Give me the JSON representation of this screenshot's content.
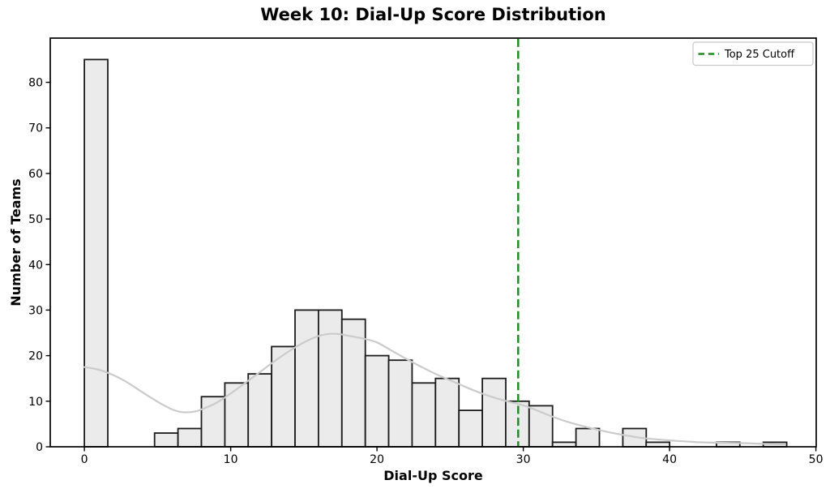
{
  "chart_data": {
    "type": "bar",
    "subtype": "histogram",
    "title": "Week 10: Dial-Up Score Distribution",
    "xlabel": "Dial-Up Score",
    "ylabel": "Number of Teams",
    "xlim": [
      -2.33,
      50.02
    ],
    "ylim": [
      0,
      89.7
    ],
    "xticks": [
      0,
      10,
      20,
      30,
      40,
      50
    ],
    "yticks": [
      0,
      10,
      20,
      30,
      40,
      50,
      60,
      70,
      80
    ],
    "grid": false,
    "bin_start": 0,
    "bin_width": 1.6,
    "counts": [
      85,
      0,
      0,
      3,
      4,
      11,
      14,
      16,
      22,
      30,
      30,
      28,
      20,
      19,
      14,
      15,
      8,
      15,
      10,
      9,
      1,
      4,
      0,
      4,
      1,
      0,
      0,
      1,
      0,
      1
    ],
    "kde": {
      "x": [
        0,
        1,
        2,
        3,
        4,
        5,
        6,
        6.7,
        7.5,
        8,
        9,
        10,
        11,
        12,
        13,
        14,
        15,
        16,
        16.8,
        17.5,
        18,
        19,
        20,
        21,
        22,
        23,
        24,
        25,
        26,
        27,
        28,
        29,
        30,
        31,
        32,
        33,
        34,
        35,
        36,
        37,
        38,
        39,
        40,
        41,
        42,
        43,
        44,
        45,
        46,
        47,
        47.9
      ],
      "y": [
        17.5,
        16.9,
        15.7,
        14.0,
        11.9,
        9.9,
        8.2,
        7.6,
        7.7,
        8.2,
        9.6,
        11.7,
        14.0,
        16.4,
        18.8,
        21.0,
        22.9,
        24.3,
        24.8,
        24.7,
        24.4,
        23.8,
        22.9,
        21.1,
        19.3,
        17.6,
        16.0,
        14.6,
        13.2,
        11.9,
        10.8,
        9.9,
        9.1,
        7.9,
        6.6,
        5.5,
        4.6,
        3.8,
        3.1,
        2.5,
        2.0,
        1.65,
        1.4,
        1.2,
        1.0,
        0.9,
        0.85,
        0.8,
        0.7,
        0.6,
        0.55
      ]
    },
    "cutoff": {
      "x": 29.65,
      "label": "Top 25 Cutoff"
    },
    "legend": {
      "position": "upper right",
      "entries": [
        {
          "label": "Top 25 Cutoff",
          "color": "#228B22",
          "linestyle": "dashed"
        }
      ]
    },
    "colors": {
      "bar_fill": "#ebebeb",
      "bar_edge": "#1c1c1c",
      "kde": "#cbcbcb",
      "cutoff": "#228B22",
      "frame": "#000000",
      "tick": "#000000"
    }
  }
}
